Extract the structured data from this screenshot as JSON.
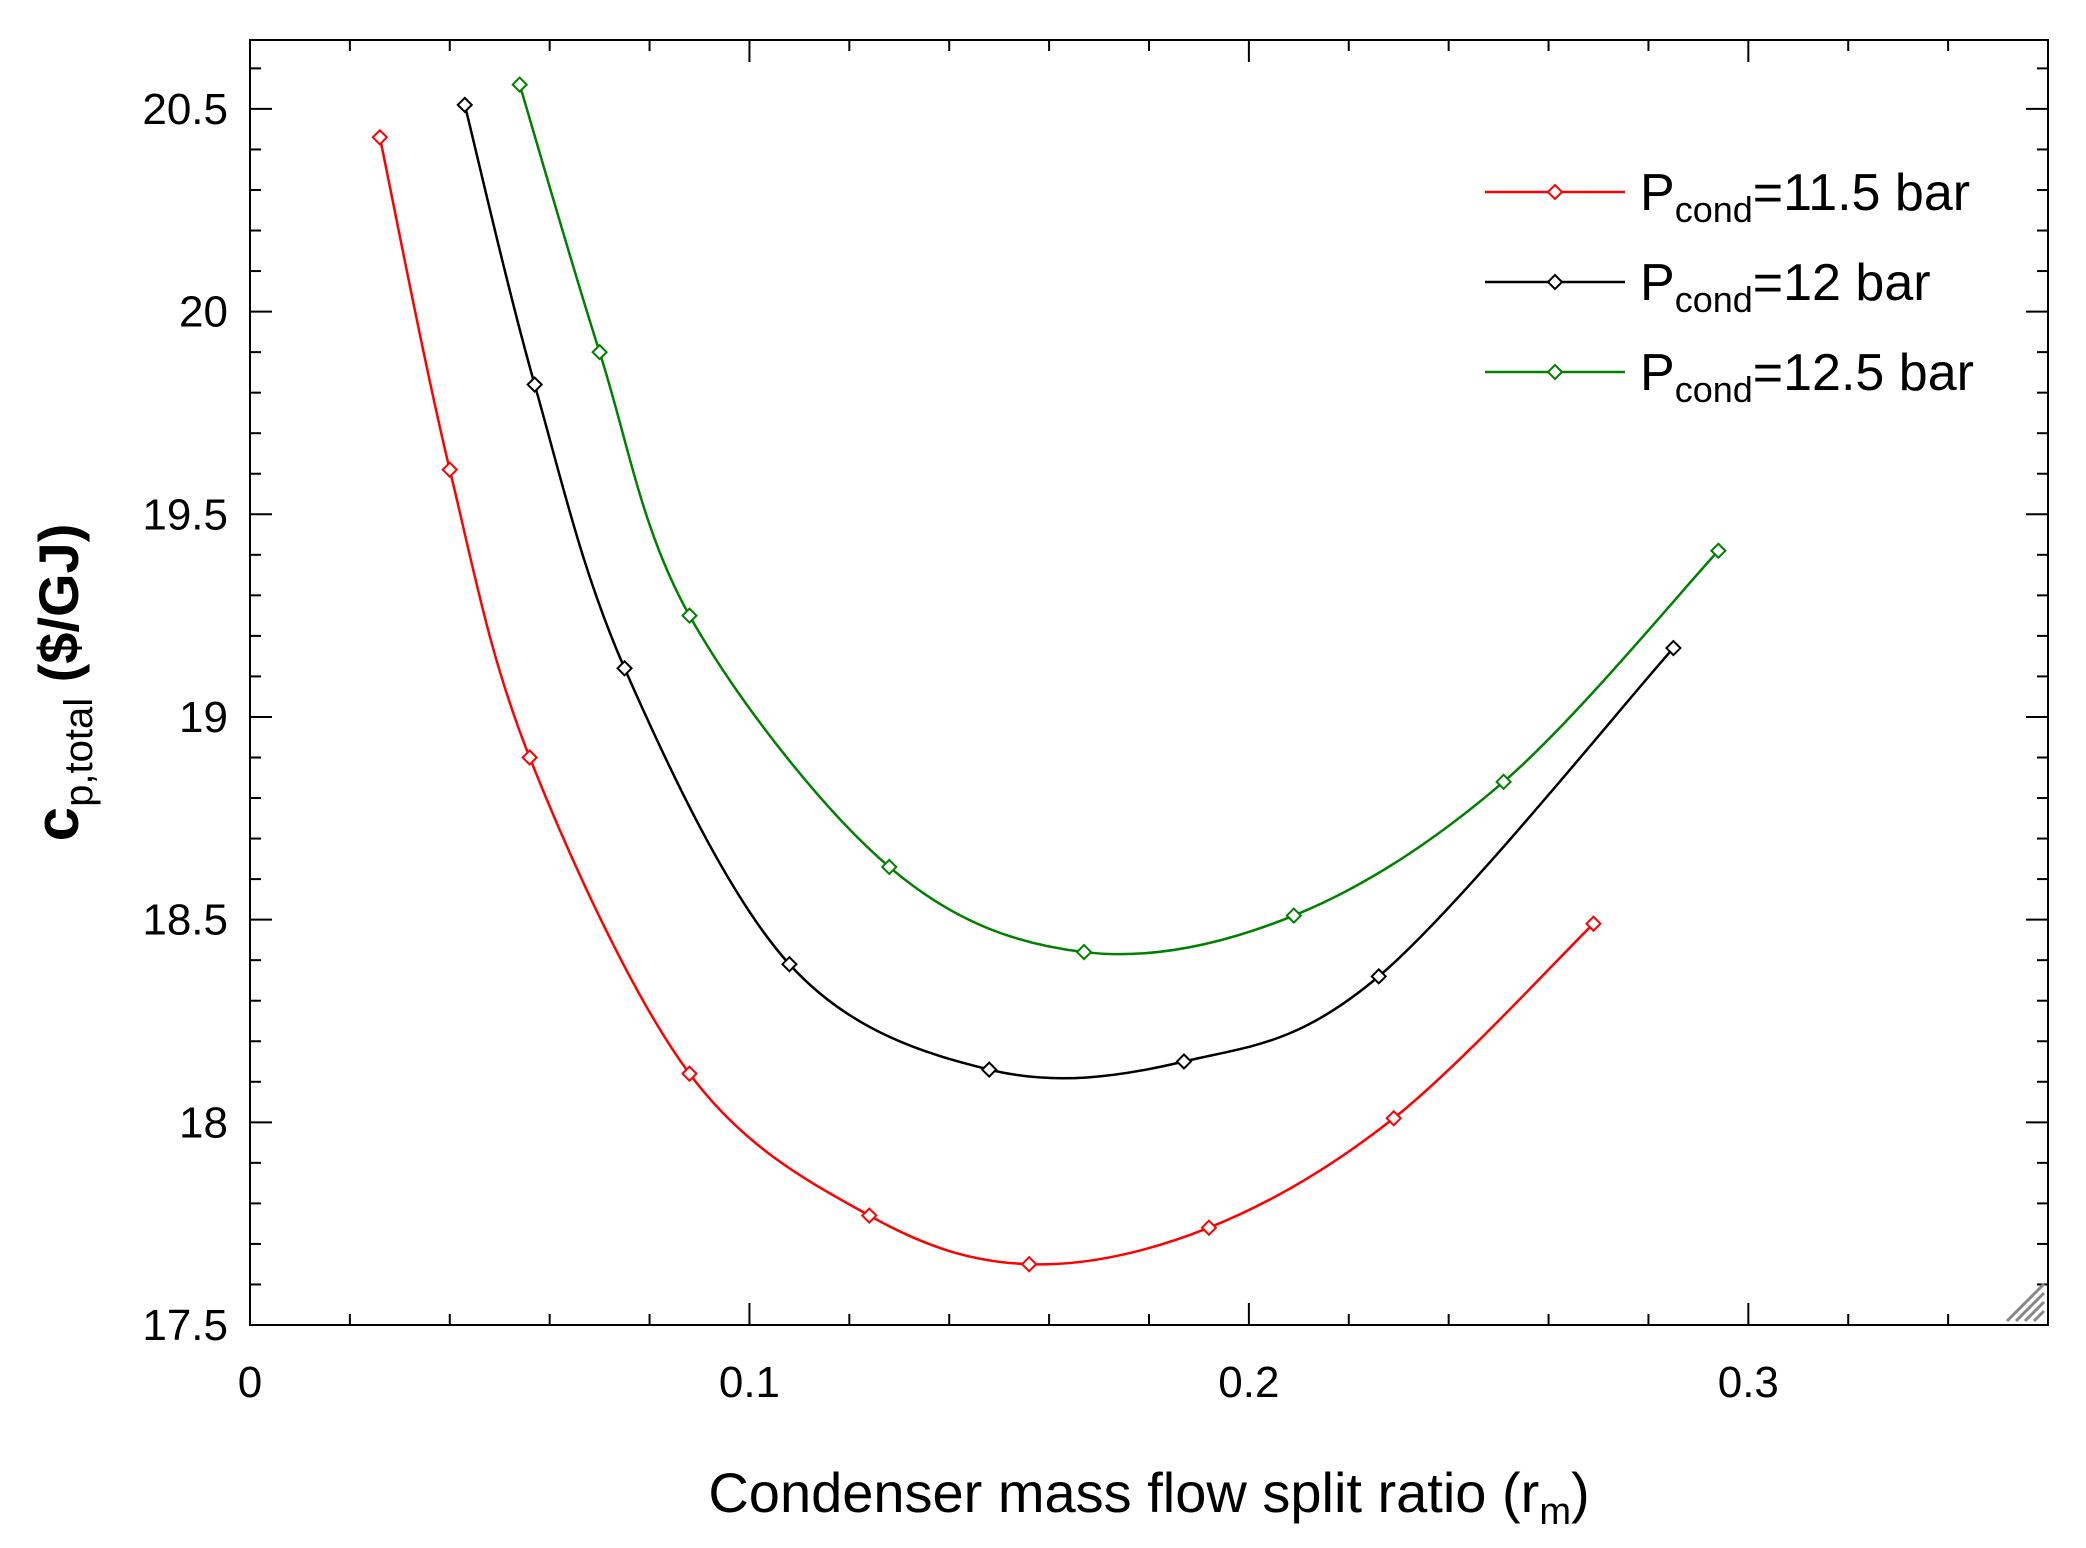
{
  "chart_data": {
    "type": "line",
    "xlabel": "Condenser mass flow split ratio (r",
    "xlabel_sub": "m",
    "xlabel_close": ")",
    "ylabel_main": "c",
    "ylabel_sub": "p,total",
    "ylabel_unit": " ($/GJ)",
    "xlim": [
      0,
      0.36
    ],
    "ylim": [
      17.5,
      20.67
    ],
    "xticks": [
      0,
      0.1,
      0.2,
      0.3
    ],
    "xtick_labels": [
      "0",
      "0.1",
      "0.2",
      "0.3"
    ],
    "yticks": [
      17.5,
      18,
      18.5,
      19,
      19.5,
      20,
      20.5
    ],
    "ytick_labels": [
      "17.5",
      "18",
      "18.5",
      "19",
      "19.5",
      "20",
      "20.5"
    ],
    "grid": false,
    "legend_position": "top-right",
    "series": [
      {
        "name": "P_cond=11.5 bar",
        "legend_prefix": "P",
        "legend_sub": "cond",
        "legend_suffix": "=11.5 bar",
        "color": "#ff0000",
        "x": [
          0.026,
          0.04,
          0.056,
          0.088,
          0.124,
          0.156,
          0.192,
          0.229,
          0.269
        ],
        "y": [
          20.43,
          19.61,
          18.9,
          18.12,
          17.77,
          17.65,
          17.74,
          18.01,
          18.49
        ]
      },
      {
        "name": "P_cond=12 bar",
        "legend_prefix": "P",
        "legend_sub": "cond",
        "legend_suffix": "=12 bar",
        "color": "#000000",
        "x": [
          0.043,
          0.057,
          0.075,
          0.108,
          0.148,
          0.187,
          0.226,
          0.285
        ],
        "y": [
          20.51,
          19.82,
          19.12,
          18.39,
          18.13,
          18.15,
          18.36,
          19.17
        ]
      },
      {
        "name": "P_cond=12.5 bar",
        "legend_prefix": "P",
        "legend_sub": "cond",
        "legend_suffix": "=12.5 bar",
        "color": "#008000",
        "x": [
          0.054,
          0.07,
          0.088,
          0.128,
          0.167,
          0.209,
          0.251,
          0.294
        ],
        "y": [
          20.56,
          19.9,
          19.25,
          18.63,
          18.42,
          18.51,
          18.84,
          19.41
        ]
      }
    ]
  }
}
